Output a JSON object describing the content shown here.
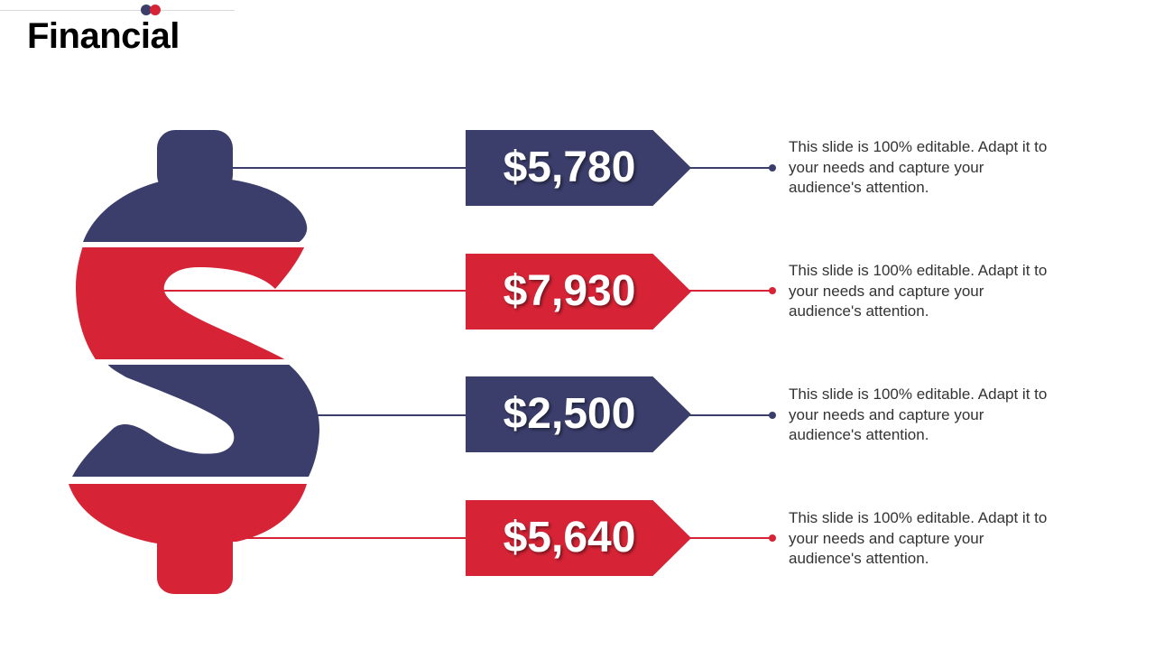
{
  "slide": {
    "title": "Financial"
  },
  "colors": {
    "navy": "#3b3e6b",
    "red": "#d62436",
    "line": "#3b3e6b"
  },
  "items": [
    {
      "value": "$5,780",
      "color": "navy",
      "description": "This slide is 100% editable. Adapt it to your needs and capture your audience's attention."
    },
    {
      "value": "$7,930",
      "color": "red",
      "description": "This slide is 100% editable. Adapt it to your needs and capture your audience's attention."
    },
    {
      "value": "$2,500",
      "color": "navy",
      "description": "This slide is 100% editable. Adapt it to your needs and capture your audience's attention."
    },
    {
      "value": "$5,640",
      "color": "red",
      "description": "This slide is 100% editable. Adapt it to your needs and capture your audience's attention."
    }
  ]
}
